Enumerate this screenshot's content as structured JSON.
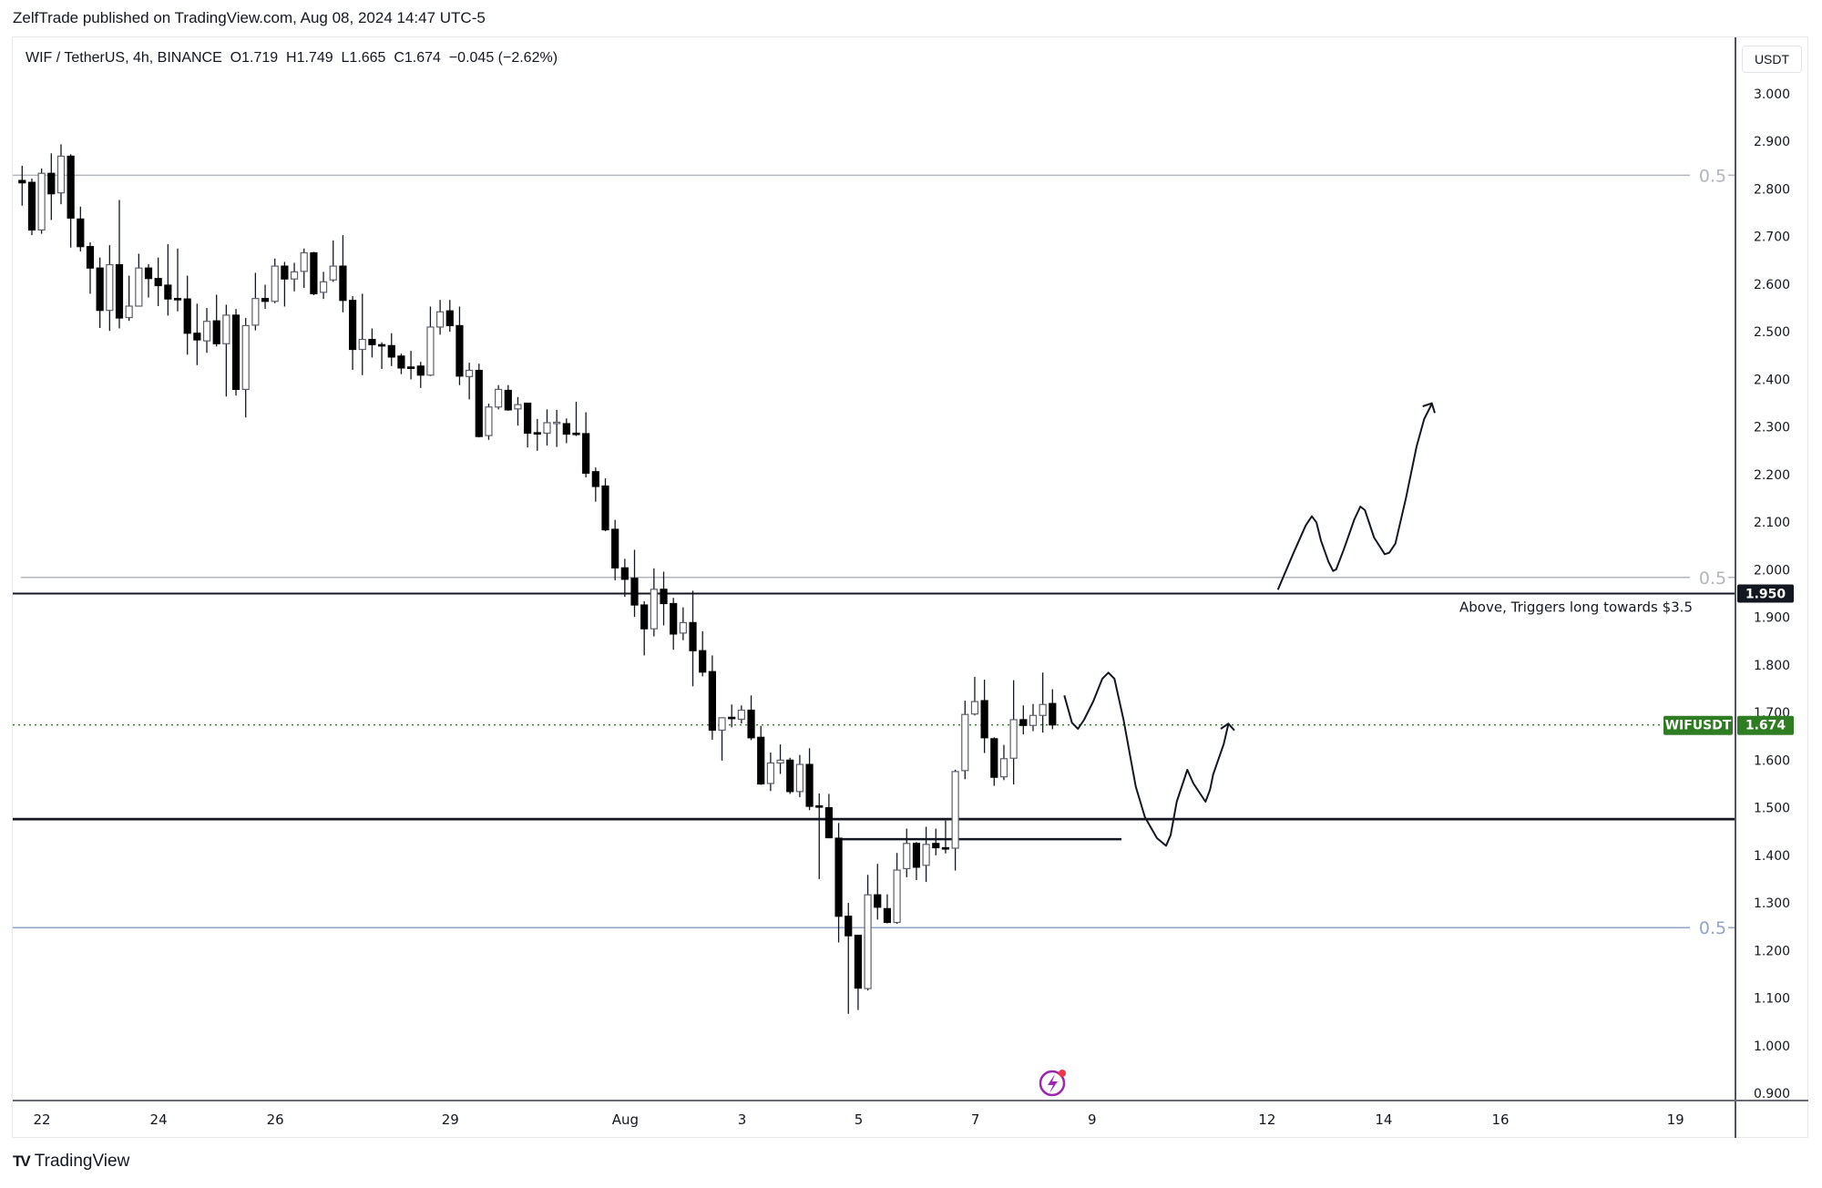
{
  "header": {
    "publisher": "ZelfTrade published on TradingView.com, Aug 08, 2024 14:47 UTC-5"
  },
  "legend": {
    "symbol": "WIF / TetherUS, 4h, BINANCE",
    "open": "O1.719",
    "high": "H1.749",
    "low": "L1.665",
    "close": "C1.674",
    "change": "−0.045 (−2.62%)"
  },
  "price_axis": {
    "currency": "USDT",
    "ticks": [
      "3.000",
      "2.900",
      "2.800",
      "2.700",
      "2.600",
      "2.500",
      "2.400",
      "2.300",
      "2.200",
      "2.100",
      "2.000",
      "1.900",
      "1.800",
      "1.700",
      "1.600",
      "1.500",
      "1.400",
      "1.300",
      "1.200",
      "1.100",
      "1.000",
      "0.900"
    ]
  },
  "time_axis": {
    "ticks": [
      {
        "label": "22",
        "day": 0
      },
      {
        "label": "24",
        "day": 2
      },
      {
        "label": "26",
        "day": 4
      },
      {
        "label": "29",
        "day": 7
      },
      {
        "label": "Aug",
        "day": 10
      },
      {
        "label": "3",
        "day": 12
      },
      {
        "label": "5",
        "day": 14
      },
      {
        "label": "7",
        "day": 16
      },
      {
        "label": "9",
        "day": 18
      },
      {
        "label": "12",
        "day": 21
      },
      {
        "label": "14",
        "day": 23
      },
      {
        "label": "16",
        "day": 25
      },
      {
        "label": "19",
        "day": 28
      }
    ]
  },
  "levels": {
    "fib_upper": {
      "price": 2.829,
      "label": "0.5",
      "color": "#b2b5be"
    },
    "fib_middle": {
      "price": 1.984,
      "label": "0.5",
      "color": "#b2b5be"
    },
    "trigger": {
      "price": 1.95,
      "label": "1.950",
      "color": "#131722",
      "note": "Above, Triggers long towards $3.5"
    },
    "support": {
      "price": 1.476,
      "color": "#131722"
    },
    "short_support": {
      "price": 1.434,
      "color": "#131722"
    },
    "fib_lower": {
      "price": 1.248,
      "label": "0.5",
      "color": "#8fa4c8"
    }
  },
  "last_price": {
    "symbol": "WIFUSDT",
    "value": "1.674",
    "price": 1.674,
    "color": "#2f7d22"
  },
  "footer": {
    "brand": "TradingView"
  },
  "chart_data": {
    "type": "candlestick",
    "title": "WIF / TetherUS, 4h, BINANCE",
    "ylim": [
      0.9,
      3.0
    ],
    "ylabel": "USDT",
    "fields": [
      "open",
      "high",
      "low",
      "close"
    ],
    "candles": [
      [
        2.818,
        2.849,
        2.765,
        2.813
      ],
      [
        2.814,
        2.822,
        2.703,
        2.714
      ],
      [
        2.714,
        2.843,
        2.706,
        2.833
      ],
      [
        2.833,
        2.875,
        2.735,
        2.79
      ],
      [
        2.792,
        2.894,
        2.768,
        2.869
      ],
      [
        2.869,
        2.873,
        2.677,
        2.739
      ],
      [
        2.737,
        2.763,
        2.669,
        2.679
      ],
      [
        2.679,
        2.688,
        2.58,
        2.634
      ],
      [
        2.634,
        2.656,
        2.508,
        2.545
      ],
      [
        2.545,
        2.682,
        2.502,
        2.641
      ],
      [
        2.641,
        2.777,
        2.507,
        2.529
      ],
      [
        2.53,
        2.618,
        2.523,
        2.554
      ],
      [
        2.554,
        2.664,
        2.553,
        2.634
      ],
      [
        2.634,
        2.642,
        2.572,
        2.612
      ],
      [
        2.612,
        2.656,
        2.554,
        2.597
      ],
      [
        2.598,
        2.684,
        2.534,
        2.569
      ],
      [
        2.57,
        2.675,
        2.543,
        2.569
      ],
      [
        2.569,
        2.618,
        2.452,
        2.497
      ],
      [
        2.497,
        2.559,
        2.43,
        2.483
      ],
      [
        2.481,
        2.55,
        2.456,
        2.522
      ],
      [
        2.523,
        2.578,
        2.469,
        2.475
      ],
      [
        2.475,
        2.557,
        2.364,
        2.535
      ],
      [
        2.535,
        2.548,
        2.366,
        2.379
      ],
      [
        2.379,
        2.529,
        2.32,
        2.513
      ],
      [
        2.514,
        2.624,
        2.503,
        2.57
      ],
      [
        2.57,
        2.599,
        2.548,
        2.564
      ],
      [
        2.564,
        2.654,
        2.56,
        2.638
      ],
      [
        2.638,
        2.647,
        2.553,
        2.611
      ],
      [
        2.611,
        2.645,
        2.585,
        2.626
      ],
      [
        2.627,
        2.675,
        2.592,
        2.666
      ],
      [
        2.666,
        2.668,
        2.577,
        2.58
      ],
      [
        2.583,
        2.626,
        2.569,
        2.605
      ],
      [
        2.609,
        2.692,
        2.605,
        2.638
      ],
      [
        2.638,
        2.703,
        2.541,
        2.566
      ],
      [
        2.566,
        2.575,
        2.42,
        2.463
      ],
      [
        2.463,
        2.58,
        2.409,
        2.484
      ],
      [
        2.484,
        2.507,
        2.446,
        2.473
      ],
      [
        2.473,
        2.478,
        2.422,
        2.472
      ],
      [
        2.471,
        2.497,
        2.428,
        2.447
      ],
      [
        2.449,
        2.454,
        2.411,
        2.424
      ],
      [
        2.426,
        2.46,
        2.4,
        2.425
      ],
      [
        2.428,
        2.437,
        2.382,
        2.409
      ],
      [
        2.409,
        2.553,
        2.407,
        2.51
      ],
      [
        2.51,
        2.567,
        2.494,
        2.542
      ],
      [
        2.544,
        2.567,
        2.5,
        2.513
      ],
      [
        2.513,
        2.553,
        2.388,
        2.407
      ],
      [
        2.406,
        2.435,
        2.358,
        2.419
      ],
      [
        2.419,
        2.433,
        2.278,
        2.28
      ],
      [
        2.282,
        2.349,
        2.273,
        2.342
      ],
      [
        2.342,
        2.388,
        2.337,
        2.379
      ],
      [
        2.377,
        2.388,
        2.334,
        2.336
      ],
      [
        2.338,
        2.363,
        2.303,
        2.347
      ],
      [
        2.35,
        2.351,
        2.257,
        2.287
      ],
      [
        2.288,
        2.317,
        2.25,
        2.287
      ],
      [
        2.287,
        2.337,
        2.261,
        2.309
      ],
      [
        2.31,
        2.336,
        2.258,
        2.31
      ],
      [
        2.307,
        2.318,
        2.266,
        2.285
      ],
      [
        2.287,
        2.353,
        2.281,
        2.286
      ],
      [
        2.286,
        2.331,
        2.194,
        2.203
      ],
      [
        2.206,
        2.215,
        2.143,
        2.175
      ],
      [
        2.176,
        2.192,
        2.081,
        2.084
      ],
      [
        2.085,
        2.105,
        1.978,
        2.004
      ],
      [
        2.004,
        2.023,
        1.943,
        1.98
      ],
      [
        1.982,
        2.042,
        1.901,
        1.926
      ],
      [
        1.926,
        1.934,
        1.82,
        1.876
      ],
      [
        1.876,
        2.003,
        1.86,
        1.959
      ],
      [
        1.959,
        1.996,
        1.883,
        1.929
      ],
      [
        1.929,
        1.941,
        1.832,
        1.865
      ],
      [
        1.867,
        1.921,
        1.852,
        1.889
      ],
      [
        1.889,
        1.956,
        1.755,
        1.83
      ],
      [
        1.83,
        1.871,
        1.776,
        1.785
      ],
      [
        1.786,
        1.82,
        1.643,
        1.663
      ],
      [
        1.663,
        1.69,
        1.599,
        1.689
      ],
      [
        1.69,
        1.717,
        1.669,
        1.689
      ],
      [
        1.686,
        1.715,
        1.677,
        1.705
      ],
      [
        1.705,
        1.736,
        1.642,
        1.647
      ],
      [
        1.648,
        1.672,
        1.548,
        1.55
      ],
      [
        1.551,
        1.616,
        1.535,
        1.594
      ],
      [
        1.594,
        1.633,
        1.571,
        1.6
      ],
      [
        1.6,
        1.605,
        1.529,
        1.534
      ],
      [
        1.534,
        1.611,
        1.522,
        1.591
      ],
      [
        1.591,
        1.625,
        1.495,
        1.503
      ],
      [
        1.504,
        1.53,
        1.35,
        1.503
      ],
      [
        1.5,
        1.529,
        1.436,
        1.437
      ],
      [
        1.436,
        1.468,
        1.217,
        1.272
      ],
      [
        1.272,
        1.3,
        1.067,
        1.231
      ],
      [
        1.232,
        1.232,
        1.075,
        1.121
      ],
      [
        1.12,
        1.359,
        1.116,
        1.317
      ],
      [
        1.317,
        1.382,
        1.265,
        1.291
      ],
      [
        1.288,
        1.318,
        1.257,
        1.259
      ],
      [
        1.259,
        1.405,
        1.256,
        1.369
      ],
      [
        1.372,
        1.456,
        1.354,
        1.425
      ],
      [
        1.425,
        1.428,
        1.348,
        1.375
      ],
      [
        1.379,
        1.46,
        1.344,
        1.423
      ],
      [
        1.425,
        1.456,
        1.4,
        1.416
      ],
      [
        1.416,
        1.473,
        1.404,
        1.415
      ],
      [
        1.415,
        1.58,
        1.368,
        1.576
      ],
      [
        1.578,
        1.725,
        1.56,
        1.696
      ],
      [
        1.697,
        1.775,
        1.694,
        1.723
      ],
      [
        1.725,
        1.769,
        1.615,
        1.647
      ],
      [
        1.645,
        1.648,
        1.546,
        1.564
      ],
      [
        1.565,
        1.632,
        1.558,
        1.603
      ],
      [
        1.604,
        1.768,
        1.549,
        1.685
      ],
      [
        1.685,
        1.715,
        1.654,
        1.673
      ],
      [
        1.673,
        1.718,
        1.661,
        1.694
      ],
      [
        1.694,
        1.784,
        1.658,
        1.717
      ],
      [
        1.719,
        1.749,
        1.665,
        1.674
      ]
    ]
  }
}
